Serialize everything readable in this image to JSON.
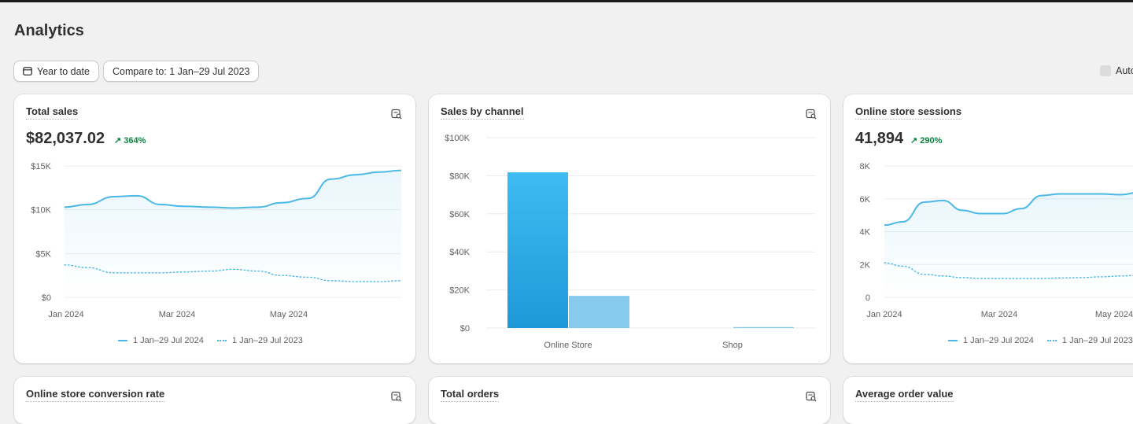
{
  "page": {
    "title": "Analytics"
  },
  "toolbar": {
    "date_range_label": "Year to date",
    "compare_label": "Compare to: 1 Jan–29 Jul 2023",
    "auto_refresh_label": "Auto"
  },
  "cards": {
    "total_sales": {
      "title": "Total sales",
      "value": "$82,037.02",
      "change": "364%",
      "icon": "explore-report-icon",
      "legend_current": "1 Jan–29 Jul 2024",
      "legend_previous": "1 Jan–29 Jul 2023"
    },
    "sales_by_channel": {
      "title": "Sales by channel",
      "icon": "explore-report-icon"
    },
    "sessions": {
      "title": "Online store sessions",
      "value": "41,894",
      "change": "290%",
      "icon": "explore-report-icon",
      "legend_current": "1 Jan–29 Jul 2024",
      "legend_previous": "1 Jan–29 Jul 2023"
    },
    "conversion": {
      "title": "Online store conversion rate",
      "icon": "explore-report-icon"
    },
    "orders": {
      "title": "Total orders",
      "icon": "explore-report-icon"
    },
    "aov": {
      "title": "Average order value"
    }
  },
  "colors": {
    "current_series": "#4bb8e6",
    "bar_primary": "#2fa8e6",
    "bar_secondary": "#86cbed",
    "positive": "#108043"
  },
  "chart_data": [
    {
      "type": "area",
      "x_ticks": [
        "Jan 2024",
        "Mar 2024",
        "May 2024"
      ],
      "y_ticks": [
        "$0",
        "$5K",
        "$10K",
        "$15K"
      ],
      "ylim": [
        0,
        15000
      ],
      "x": [
        "2024-01-01",
        "2024-01-15",
        "2024-02-01",
        "2024-02-15",
        "2024-03-01",
        "2024-03-15",
        "2024-04-01",
        "2024-04-15",
        "2024-05-01",
        "2024-05-15",
        "2024-06-01",
        "2024-06-15",
        "2024-07-01",
        "2024-07-15",
        "2024-07-29"
      ],
      "series": [
        {
          "name": "1 Jan–29 Jul 2024",
          "style": "solid",
          "values": [
            10300,
            10600,
            11500,
            11600,
            10600,
            10400,
            10300,
            10200,
            10300,
            10800,
            11300,
            13500,
            14000,
            14300,
            14500
          ]
        },
        {
          "name": "1 Jan–29 Jul 2023",
          "style": "dotted",
          "values": [
            3700,
            3400,
            2800,
            2800,
            2800,
            2900,
            3000,
            3200,
            3000,
            2500,
            2300,
            1900,
            1800,
            1800,
            1900
          ]
        }
      ],
      "grid": true,
      "legend": "bottom"
    },
    {
      "type": "bar",
      "categories": [
        "Online Store",
        "Shop"
      ],
      "series": [
        {
          "name": "1 Jan–29 Jul 2024",
          "values": [
            81800,
            0
          ]
        },
        {
          "name": "1 Jan–29 Jul 2023",
          "values": [
            16900,
            500
          ]
        }
      ],
      "y_ticks": [
        "$0",
        "$20K",
        "$40K",
        "$60K",
        "$80K",
        "$100K"
      ],
      "ylim": [
        0,
        100000
      ],
      "grid": true
    },
    {
      "type": "area",
      "x_ticks": [
        "Jan 2024",
        "Mar 2024",
        "May 2024"
      ],
      "y_ticks": [
        "0",
        "2K",
        "4K",
        "6K",
        "8K"
      ],
      "ylim": [
        0,
        8000
      ],
      "x": [
        "2024-01-01",
        "2024-01-15",
        "2024-02-01",
        "2024-02-15",
        "2024-03-01",
        "2024-03-15",
        "2024-04-01",
        "2024-04-15",
        "2024-05-01",
        "2024-05-15",
        "2024-06-01",
        "2024-06-15",
        "2024-07-01",
        "2024-07-15"
      ],
      "series": [
        {
          "name": "1 Jan–29 Jul 2024",
          "style": "solid",
          "values": [
            4400,
            4600,
            5800,
            5900,
            5300,
            5100,
            5100,
            5400,
            6200,
            6300,
            6300,
            6300,
            6250,
            6400
          ]
        },
        {
          "name": "1 Jan–29 Jul 2023",
          "style": "dotted",
          "values": [
            2100,
            1900,
            1400,
            1300,
            1200,
            1150,
            1150,
            1150,
            1150,
            1180,
            1200,
            1250,
            1300,
            1350
          ]
        }
      ],
      "grid": true,
      "legend": "bottom"
    }
  ]
}
